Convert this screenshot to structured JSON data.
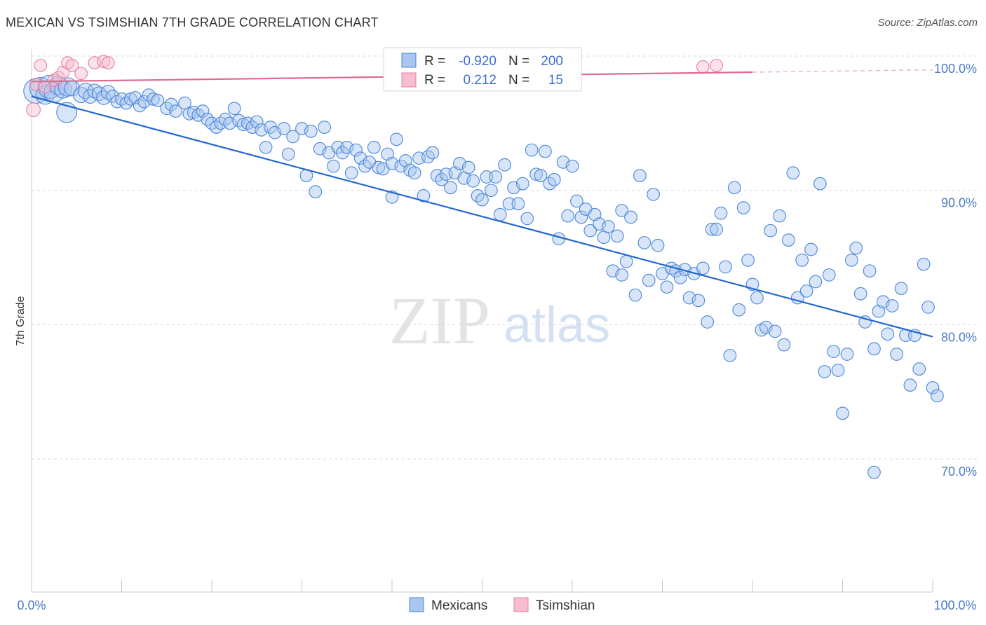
{
  "title": "MEXICAN VS TSIMSHIAN 7TH GRADE CORRELATION CHART",
  "source": "Source: ZipAtlas.com",
  "watermark": {
    "zip": "ZIP",
    "atlas": "atlas"
  },
  "colors": {
    "blue_fill": "#a9c6f0",
    "blue_stroke": "#4a86d8",
    "blue_line": "#2468d0",
    "pink_fill": "#f6bcd0",
    "pink_stroke": "#e57fa3",
    "pink_line": "#e06a92",
    "label_blue": "#4a7bc6",
    "grid": "#d9d9d9"
  },
  "legend": {
    "rows": [
      {
        "r_label": "R =",
        "r_value": "-0.920",
        "n_label": "N =",
        "n_value": "200"
      },
      {
        "r_label": "R =",
        "r_value": "0.212",
        "n_label": "N =",
        "n_value": "15"
      }
    ]
  },
  "bottom_legend": [
    "Mexicans",
    "Tsimshian"
  ],
  "chart_data": {
    "type": "scatter",
    "title": "MEXICAN VS TSIMSHIAN 7TH GRADE CORRELATION CHART",
    "xlabel": "",
    "ylabel": "7th Grade",
    "xlim": [
      0,
      100
    ],
    "ylim": [
      60,
      100
    ],
    "x_tick_labels": [
      "0.0%",
      "100.0%"
    ],
    "y_ticks": [
      100,
      90,
      80,
      70
    ],
    "y_tick_labels": [
      "100.0%",
      "90.0%",
      "80.0%",
      "70.0%"
    ],
    "grid": true,
    "legend_position": "top-center",
    "series": [
      {
        "name": "Mexicans",
        "r": -0.92,
        "n": 200,
        "trend": {
          "x0": 0,
          "y0": 97.0,
          "x1": 100,
          "y1": 79.1
        },
        "points": [
          [
            0.5,
            97.4,
            1.6
          ],
          [
            1.0,
            97.6,
            1.4
          ],
          [
            1.5,
            97.1,
            1.2
          ],
          [
            2.0,
            97.7,
            1.5
          ],
          [
            2.5,
            97.3,
            1.3
          ],
          [
            3.0,
            97.8,
            1.2
          ],
          [
            3.5,
            97.5,
            1.1
          ],
          [
            4.0,
            97.7,
            1.2
          ],
          [
            3.9,
            95.8,
            1.3
          ],
          [
            4.5,
            97.6,
            1.0
          ],
          [
            5.5,
            97.1,
            1.0
          ],
          [
            6.0,
            97.4,
            1.0
          ],
          [
            6.5,
            97.0,
            0.9
          ],
          [
            7.0,
            97.4,
            0.9
          ],
          [
            7.5,
            97.2,
            0.9
          ],
          [
            8.0,
            96.9,
            0.9
          ],
          [
            8.5,
            97.3,
            0.9
          ],
          [
            9.0,
            97.0,
            0.8
          ],
          [
            9.5,
            96.6,
            0.8
          ],
          [
            10.0,
            96.8,
            0.8
          ],
          [
            10.5,
            96.5,
            0.8
          ],
          [
            11.0,
            96.8,
            0.8
          ],
          [
            11.5,
            96.9,
            0.8
          ],
          [
            12.0,
            96.3,
            0.8
          ],
          [
            12.5,
            96.6,
            0.8
          ],
          [
            13.0,
            97.1,
            0.8
          ],
          [
            13.5,
            96.8,
            0.8
          ],
          [
            14.0,
            96.7,
            0.8
          ],
          [
            15.0,
            96.1,
            0.8
          ],
          [
            15.5,
            96.4,
            0.8
          ],
          [
            16.0,
            95.9,
            0.8
          ],
          [
            17.0,
            96.5,
            0.8
          ],
          [
            17.5,
            95.7,
            0.8
          ],
          [
            18.0,
            95.8,
            0.8
          ],
          [
            18.5,
            95.6,
            0.8
          ],
          [
            19.0,
            95.9,
            0.8
          ],
          [
            19.5,
            95.3,
            0.8
          ],
          [
            20.0,
            95.0,
            0.8
          ],
          [
            20.5,
            94.7,
            0.8
          ],
          [
            21.0,
            95.0,
            0.8
          ],
          [
            21.5,
            95.3,
            0.8
          ],
          [
            22.0,
            95.0,
            0.8
          ],
          [
            22.5,
            96.1,
            0.8
          ],
          [
            23.0,
            95.2,
            0.8
          ],
          [
            23.5,
            94.9,
            0.8
          ],
          [
            24.0,
            95.0,
            0.8
          ],
          [
            24.5,
            94.7,
            0.8
          ],
          [
            25.0,
            95.1,
            0.8
          ],
          [
            25.5,
            94.5,
            0.8
          ],
          [
            26.0,
            93.2,
            0.8
          ],
          [
            26.5,
            94.7,
            0.8
          ],
          [
            27.0,
            94.3,
            0.8
          ],
          [
            28.0,
            94.6,
            0.8
          ],
          [
            28.5,
            92.7,
            0.8
          ],
          [
            29.0,
            94.0,
            0.8
          ],
          [
            30.0,
            94.6,
            0.8
          ],
          [
            30.5,
            91.1,
            0.8
          ],
          [
            31.0,
            94.4,
            0.8
          ],
          [
            31.5,
            89.9,
            0.8
          ],
          [
            32.0,
            93.1,
            0.8
          ],
          [
            32.5,
            94.7,
            0.8
          ],
          [
            33.0,
            92.8,
            0.8
          ],
          [
            33.5,
            91.8,
            0.8
          ],
          [
            34.0,
            93.2,
            0.8
          ],
          [
            34.5,
            92.8,
            0.8
          ],
          [
            35.0,
            93.2,
            0.8
          ],
          [
            35.5,
            91.3,
            0.8
          ],
          [
            36.0,
            93.0,
            0.8
          ],
          [
            36.5,
            92.4,
            0.8
          ],
          [
            37.0,
            91.8,
            0.8
          ],
          [
            37.5,
            92.1,
            0.8
          ],
          [
            38.0,
            93.2,
            0.8
          ],
          [
            38.5,
            91.7,
            0.8
          ],
          [
            39.0,
            91.6,
            0.8
          ],
          [
            39.5,
            92.7,
            0.8
          ],
          [
            40.0,
            92.0,
            0.8
          ],
          [
            40.5,
            93.8,
            0.8
          ],
          [
            41.0,
            91.8,
            0.8
          ],
          [
            41.5,
            92.2,
            0.8
          ],
          [
            42.0,
            91.5,
            0.8
          ],
          [
            42.5,
            91.3,
            0.8
          ],
          [
            43.0,
            92.4,
            0.8
          ],
          [
            43.5,
            89.6,
            0.8
          ],
          [
            44.0,
            92.5,
            0.8
          ],
          [
            44.5,
            92.8,
            0.8
          ],
          [
            45.0,
            91.1,
            0.8
          ],
          [
            45.5,
            90.8,
            0.8
          ],
          [
            46.0,
            91.2,
            0.8
          ],
          [
            46.5,
            90.2,
            0.8
          ],
          [
            47.0,
            91.3,
            0.8
          ],
          [
            47.5,
            92.0,
            0.8
          ],
          [
            48.0,
            90.9,
            0.8
          ],
          [
            48.5,
            91.7,
            0.8
          ],
          [
            49.0,
            90.7,
            0.8
          ],
          [
            49.5,
            89.6,
            0.8
          ],
          [
            50.0,
            89.3,
            0.8
          ],
          [
            50.5,
            91.0,
            0.8
          ],
          [
            51.0,
            90.0,
            0.8
          ],
          [
            51.5,
            91.0,
            0.8
          ],
          [
            52.0,
            88.2,
            0.8
          ],
          [
            52.5,
            91.9,
            0.8
          ],
          [
            53.0,
            89.0,
            0.8
          ],
          [
            53.5,
            90.2,
            0.8
          ],
          [
            54.0,
            89.0,
            0.8
          ],
          [
            54.5,
            90.5,
            0.8
          ],
          [
            55.0,
            87.9,
            0.8
          ],
          [
            55.5,
            93.0,
            0.8
          ],
          [
            56.0,
            91.2,
            0.8
          ],
          [
            56.5,
            91.1,
            0.8
          ],
          [
            57.0,
            92.9,
            0.8
          ],
          [
            57.5,
            90.5,
            0.8
          ],
          [
            58.0,
            90.8,
            0.8
          ],
          [
            58.5,
            86.4,
            0.8
          ],
          [
            59.0,
            92.1,
            0.8
          ],
          [
            59.5,
            88.1,
            0.8
          ],
          [
            60.0,
            91.8,
            0.8
          ],
          [
            60.5,
            89.2,
            0.8
          ],
          [
            61.0,
            88.0,
            0.8
          ],
          [
            61.5,
            88.6,
            0.8
          ],
          [
            62.0,
            87.0,
            0.8
          ],
          [
            62.5,
            88.2,
            0.8
          ],
          [
            63.0,
            87.5,
            0.8
          ],
          [
            63.5,
            86.5,
            0.8
          ],
          [
            64.0,
            87.3,
            0.8
          ],
          [
            64.5,
            84.0,
            0.8
          ],
          [
            65.0,
            86.6,
            0.8
          ],
          [
            65.5,
            88.5,
            0.8
          ],
          [
            66.0,
            84.7,
            0.8
          ],
          [
            66.5,
            88.0,
            0.8
          ],
          [
            67.0,
            82.2,
            0.8
          ],
          [
            67.5,
            91.1,
            0.8
          ],
          [
            68.0,
            86.1,
            0.8
          ],
          [
            68.5,
            83.3,
            0.8
          ],
          [
            69.0,
            89.7,
            0.8
          ],
          [
            69.5,
            85.9,
            0.8
          ],
          [
            70.0,
            83.8,
            0.8
          ],
          [
            70.5,
            82.8,
            0.8
          ],
          [
            71.0,
            84.2,
            0.8
          ],
          [
            71.5,
            84.0,
            0.8
          ],
          [
            72.0,
            83.5,
            0.8
          ],
          [
            72.5,
            84.1,
            0.8
          ],
          [
            73.0,
            82.0,
            0.8
          ],
          [
            73.5,
            83.8,
            0.8
          ],
          [
            74.0,
            81.8,
            0.8
          ],
          [
            74.5,
            84.2,
            0.8
          ],
          [
            75.0,
            80.2,
            0.8
          ],
          [
            75.5,
            87.1,
            0.8
          ],
          [
            76.0,
            87.1,
            0.8
          ],
          [
            76.5,
            88.3,
            0.8
          ],
          [
            77.0,
            84.3,
            0.8
          ],
          [
            77.5,
            77.7,
            0.8
          ],
          [
            78.0,
            90.2,
            0.8
          ],
          [
            78.5,
            81.1,
            0.8
          ],
          [
            79.0,
            88.7,
            0.8
          ],
          [
            79.5,
            84.8,
            0.8
          ],
          [
            80.0,
            83.0,
            0.8
          ],
          [
            80.5,
            82.0,
            0.8
          ],
          [
            81.0,
            79.6,
            0.8
          ],
          [
            81.5,
            79.8,
            0.8
          ],
          [
            82.0,
            87.0,
            0.8
          ],
          [
            82.5,
            79.5,
            0.8
          ],
          [
            83.0,
            88.1,
            0.8
          ],
          [
            83.5,
            78.5,
            0.8
          ],
          [
            84.0,
            86.3,
            0.8
          ],
          [
            84.5,
            91.3,
            0.8
          ],
          [
            85.0,
            82.0,
            0.8
          ],
          [
            85.5,
            84.8,
            0.8
          ],
          [
            86.0,
            82.5,
            0.8
          ],
          [
            86.5,
            85.6,
            0.8
          ],
          [
            87.0,
            83.2,
            0.8
          ],
          [
            87.5,
            90.5,
            0.8
          ],
          [
            88.0,
            76.5,
            0.8
          ],
          [
            88.5,
            83.7,
            0.8
          ],
          [
            89.0,
            78.0,
            0.8
          ],
          [
            89.5,
            76.6,
            0.8
          ],
          [
            90.0,
            73.4,
            0.8
          ],
          [
            90.5,
            77.8,
            0.8
          ],
          [
            91.0,
            84.8,
            0.8
          ],
          [
            91.5,
            85.7,
            0.8
          ],
          [
            92.0,
            82.3,
            0.8
          ],
          [
            92.5,
            80.2,
            0.8
          ],
          [
            93.0,
            84.0,
            0.8
          ],
          [
            93.5,
            78.2,
            0.8
          ],
          [
            94.0,
            81.0,
            0.8
          ],
          [
            94.5,
            81.7,
            0.8
          ],
          [
            95.0,
            79.3,
            0.8
          ],
          [
            95.5,
            81.4,
            0.8
          ],
          [
            96.0,
            77.8,
            0.8
          ],
          [
            96.5,
            82.7,
            0.8
          ],
          [
            97.0,
            79.2,
            0.8
          ],
          [
            97.5,
            75.5,
            0.8
          ],
          [
            98.0,
            79.2,
            0.8
          ],
          [
            98.5,
            76.7,
            0.8
          ],
          [
            99.0,
            84.5,
            0.8
          ],
          [
            99.5,
            81.3,
            0.8
          ],
          [
            100.0,
            75.3,
            0.8
          ],
          [
            100.5,
            74.7,
            0.8
          ],
          [
            93.5,
            69.0,
            0.8
          ],
          [
            65.5,
            83.7,
            0.8
          ],
          [
            40.0,
            89.5,
            0.8
          ]
        ]
      },
      {
        "name": "Tsimshian",
        "r": 0.212,
        "n": 15,
        "trend": {
          "x0": 0,
          "y0": 98.1,
          "x1": 80,
          "y1": 98.8,
          "dash_to_x": 100
        },
        "points": [
          [
            1.0,
            99.3,
            0.8
          ],
          [
            2.5,
            98.2,
            0.8
          ],
          [
            3.0,
            98.4,
            0.8
          ],
          [
            3.5,
            98.8,
            0.8
          ],
          [
            4.0,
            99.5,
            0.8
          ],
          [
            4.5,
            99.3,
            0.8
          ],
          [
            5.5,
            98.7,
            0.8
          ],
          [
            7.0,
            99.5,
            0.8
          ],
          [
            8.0,
            99.6,
            0.8
          ],
          [
            8.5,
            99.5,
            0.8
          ],
          [
            0.5,
            97.9,
            0.8
          ],
          [
            1.5,
            97.7,
            0.8
          ],
          [
            0.2,
            96.0,
            0.9
          ],
          [
            74.5,
            99.2,
            0.8
          ],
          [
            76.0,
            99.3,
            0.8
          ]
        ]
      }
    ]
  }
}
